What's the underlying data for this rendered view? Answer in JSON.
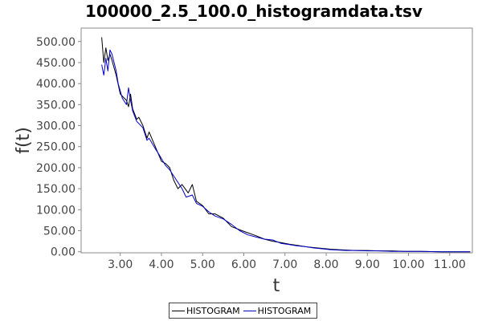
{
  "chart_data": {
    "type": "line",
    "title": "100000_2.5_100.0_histogramdata.tsv",
    "xlabel": "t",
    "ylabel": "f(t)",
    "xlim": [
      2.05,
      11.55
    ],
    "ylim": [
      -2.5,
      532
    ],
    "x_ticks": [
      "3.00",
      "4.00",
      "5.00",
      "6.00",
      "7.00",
      "8.00",
      "9.00",
      "10.00",
      "11.00"
    ],
    "y_ticks": [
      "0.00",
      "50.00",
      "100.00",
      "150.00",
      "200.00",
      "250.00",
      "300.00",
      "350.00",
      "400.00",
      "450.00",
      "500.00"
    ],
    "grid": false,
    "legend_position": "bottom",
    "series": [
      {
        "name": "HISTOGRAM",
        "color": "#000000",
        "points": [
          [
            2.55,
            510
          ],
          [
            2.6,
            450
          ],
          [
            2.65,
            485
          ],
          [
            2.7,
            455
          ],
          [
            2.75,
            470
          ],
          [
            2.8,
            455
          ],
          [
            2.9,
            420
          ],
          [
            3.0,
            375
          ],
          [
            3.05,
            370
          ],
          [
            3.15,
            360
          ],
          [
            3.2,
            345
          ],
          [
            3.25,
            375
          ],
          [
            3.3,
            340
          ],
          [
            3.4,
            315
          ],
          [
            3.45,
            320
          ],
          [
            3.55,
            300
          ],
          [
            3.65,
            270
          ],
          [
            3.7,
            285
          ],
          [
            3.85,
            250
          ],
          [
            4.0,
            215
          ],
          [
            4.1,
            210
          ],
          [
            4.2,
            200
          ],
          [
            4.3,
            170
          ],
          [
            4.4,
            150
          ],
          [
            4.5,
            160
          ],
          [
            4.65,
            140
          ],
          [
            4.75,
            160
          ],
          [
            4.85,
            120
          ],
          [
            5.0,
            110
          ],
          [
            5.15,
            90
          ],
          [
            5.3,
            90
          ],
          [
            5.5,
            80
          ],
          [
            5.7,
            60
          ],
          [
            5.9,
            52
          ],
          [
            6.1,
            45
          ],
          [
            6.3,
            38
          ],
          [
            6.5,
            30
          ],
          [
            6.7,
            25
          ],
          [
            6.9,
            22
          ],
          [
            7.1,
            18
          ],
          [
            7.3,
            15
          ],
          [
            7.5,
            12
          ],
          [
            7.7,
            10
          ],
          [
            7.9,
            8
          ],
          [
            8.1,
            6
          ],
          [
            8.3,
            5
          ],
          [
            8.5,
            4
          ],
          [
            8.7,
            3
          ],
          [
            9.0,
            3
          ],
          [
            9.3,
            2
          ],
          [
            9.6,
            2
          ],
          [
            9.9,
            1
          ],
          [
            10.3,
            1
          ],
          [
            10.8,
            0
          ],
          [
            11.5,
            0
          ]
        ]
      },
      {
        "name": "HISTOGRAM",
        "color": "#0000cc",
        "points": [
          [
            2.55,
            445
          ],
          [
            2.6,
            420
          ],
          [
            2.65,
            460
          ],
          [
            2.7,
            430
          ],
          [
            2.75,
            480
          ],
          [
            2.8,
            470
          ],
          [
            2.9,
            430
          ],
          [
            2.95,
            400
          ],
          [
            3.05,
            365
          ],
          [
            3.15,
            350
          ],
          [
            3.2,
            390
          ],
          [
            3.25,
            360
          ],
          [
            3.3,
            335
          ],
          [
            3.4,
            310
          ],
          [
            3.45,
            305
          ],
          [
            3.55,
            295
          ],
          [
            3.65,
            265
          ],
          [
            3.7,
            270
          ],
          [
            3.85,
            245
          ],
          [
            3.95,
            230
          ],
          [
            4.1,
            205
          ],
          [
            4.2,
            195
          ],
          [
            4.3,
            180
          ],
          [
            4.4,
            165
          ],
          [
            4.5,
            150
          ],
          [
            4.6,
            130
          ],
          [
            4.75,
            135
          ],
          [
            4.85,
            115
          ],
          [
            5.0,
            108
          ],
          [
            5.15,
            95
          ],
          [
            5.3,
            85
          ],
          [
            5.5,
            78
          ],
          [
            5.7,
            65
          ],
          [
            5.9,
            50
          ],
          [
            6.1,
            40
          ],
          [
            6.3,
            35
          ],
          [
            6.5,
            30
          ],
          [
            6.7,
            28
          ],
          [
            6.9,
            20
          ],
          [
            7.1,
            17
          ],
          [
            7.3,
            14
          ],
          [
            7.5,
            12
          ],
          [
            7.7,
            9
          ],
          [
            7.9,
            7
          ],
          [
            8.1,
            5
          ],
          [
            8.3,
            4
          ],
          [
            8.5,
            3
          ],
          [
            8.7,
            3
          ],
          [
            9.0,
            2
          ],
          [
            9.3,
            2
          ],
          [
            9.6,
            1
          ],
          [
            9.9,
            1
          ],
          [
            10.3,
            1
          ],
          [
            10.8,
            0
          ],
          [
            11.5,
            0
          ]
        ]
      }
    ]
  }
}
